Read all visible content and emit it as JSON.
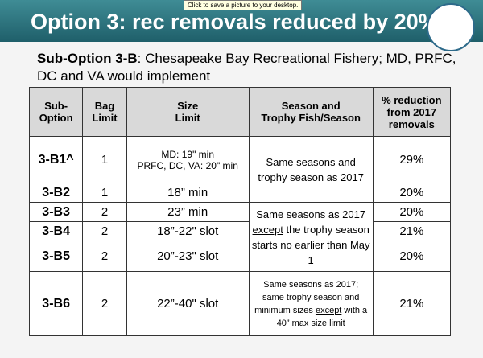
{
  "tooltip": "Click to save a picture to your desktop.",
  "header": {
    "title": "Option 3: rec removals reduced by 20%"
  },
  "subtitle": {
    "label": "Sub-Option 3-B",
    "text": ": Chesapeake Bay Recreational Fishery; MD, PRFC, DC and VA would implement"
  },
  "table": {
    "headers": [
      "Sub-\nOption",
      "Bag\nLimit",
      "Size\nLimit",
      "Season and\nTrophy Fish/Season",
      "% reduction\nfrom 2017\nremovals"
    ],
    "rows": [
      [
        "3-B1^",
        "1",
        "MD: 19\" min\nPRFC, DC, VA: 20\" min",
        "29%"
      ],
      [
        "3-B2",
        "1",
        "18” min",
        "20%"
      ],
      [
        "3-B3",
        "2",
        "23” min",
        "20%"
      ],
      [
        "3-B4",
        "2",
        "18”-22\" slot",
        "21%"
      ],
      [
        "3-B5",
        "2",
        "20”-23\" slot",
        "20%"
      ],
      [
        "3-B6",
        "2",
        "22”-40\" slot",
        "21%"
      ]
    ],
    "seasons": [
      {
        "rows": 2,
        "segments": [
          "Same seasons and trophy season as 2017"
        ]
      },
      {
        "rows": 3,
        "segments": [
          "Same seasons as 2017\n",
          "except",
          " the trophy season starts no earlier than May 1"
        ]
      },
      {
        "rows": 1,
        "segments": [
          "Same seasons as 2017; same trophy season and minimum sizes ",
          "except",
          " with a 40” max size limit"
        ]
      }
    ]
  }
}
